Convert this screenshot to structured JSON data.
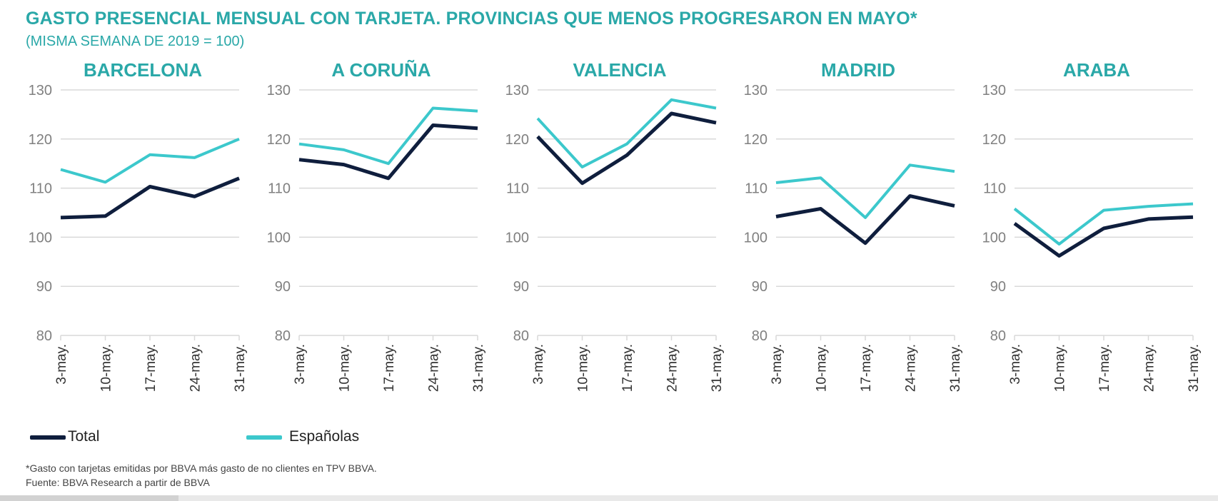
{
  "header": {
    "title": "GASTO PRESENCIAL MENSUAL CON TARJETA. PROVINCIAS QUE MENOS PROGRESARON EN MAYO*",
    "subtitle": "(MISMA SEMANA DE 2019 = 100)"
  },
  "colors": {
    "title": "#2AA8A8",
    "total": "#0F1E3D",
    "espanolas": "#3CC8CC",
    "grid": "#D9D9D9",
    "ticks": "#808080"
  },
  "legend": {
    "total_label": "Total",
    "espanolas_label": "Españolas"
  },
  "footnotes": {
    "note": "*Gasto con tarjetas emitidas por BBVA más gasto de no clientes en TPV BBVA.",
    "source": "Fuente: BBVA Research a partir de BBVA"
  },
  "chart_data": [
    {
      "type": "line",
      "title": "BARCELONA",
      "x": [
        "3-may.",
        "10-may.",
        "17-may.",
        "24-may.",
        "31-may."
      ],
      "ylim": [
        80,
        130
      ],
      "yticks": [
        80,
        90,
        100,
        110,
        120,
        130
      ],
      "grid": true,
      "series": [
        {
          "name": "Total",
          "values": [
            104,
            104.3,
            110.3,
            108.3,
            112
          ]
        },
        {
          "name": "Españolas",
          "values": [
            113.8,
            111.2,
            116.8,
            116.2,
            120
          ]
        }
      ]
    },
    {
      "type": "line",
      "title": "A CORUÑA",
      "x": [
        "3-may.",
        "10-may.",
        "17-may.",
        "24-may.",
        "31-may."
      ],
      "ylim": [
        80,
        130
      ],
      "yticks": [
        80,
        90,
        100,
        110,
        120,
        130
      ],
      "grid": true,
      "series": [
        {
          "name": "Total",
          "values": [
            115.8,
            114.8,
            112,
            122.8,
            122.2
          ]
        },
        {
          "name": "Españolas",
          "values": [
            119,
            117.8,
            115,
            126.3,
            125.7
          ]
        }
      ]
    },
    {
      "type": "line",
      "title": "VALENCIA",
      "x": [
        "3-may.",
        "10-may.",
        "17-may.",
        "24-may.",
        "31-may."
      ],
      "ylim": [
        80,
        130
      ],
      "yticks": [
        80,
        90,
        100,
        110,
        120,
        130
      ],
      "grid": true,
      "series": [
        {
          "name": "Total",
          "values": [
            120.5,
            111,
            116.7,
            125.2,
            123.3
          ]
        },
        {
          "name": "Españolas",
          "values": [
            124.2,
            114.3,
            119,
            128,
            126.3
          ]
        }
      ]
    },
    {
      "type": "line",
      "title": "MADRID",
      "x": [
        "3-may.",
        "10-may.",
        "17-may.",
        "24-may.",
        "31-may."
      ],
      "ylim": [
        80,
        130
      ],
      "yticks": [
        80,
        90,
        100,
        110,
        120,
        130
      ],
      "grid": true,
      "series": [
        {
          "name": "Total",
          "values": [
            104.2,
            105.8,
            98.8,
            108.4,
            106.4
          ]
        },
        {
          "name": "Españolas",
          "values": [
            111.1,
            112.1,
            104,
            114.7,
            113.4
          ]
        }
      ]
    },
    {
      "type": "line",
      "title": "ARABA",
      "x": [
        "3-may.",
        "10-may.",
        "17-may.",
        "24-may.",
        "31-may."
      ],
      "ylim": [
        80,
        130
      ],
      "yticks": [
        80,
        90,
        100,
        110,
        120,
        130
      ],
      "grid": true,
      "series": [
        {
          "name": "Total",
          "values": [
            102.8,
            96.2,
            101.8,
            103.7,
            104.1
          ]
        },
        {
          "name": "Españolas",
          "values": [
            105.8,
            98.6,
            105.5,
            106.3,
            106.8
          ]
        }
      ]
    }
  ]
}
